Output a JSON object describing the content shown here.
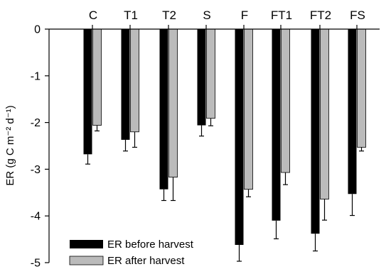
{
  "chart_data": {
    "type": "bar",
    "ylabel": "ER (g C m⁻² d⁻¹)",
    "ylim": [
      -5,
      0
    ],
    "yticks": [
      0,
      -1,
      -2,
      -3,
      -4,
      -5
    ],
    "categories": [
      "C",
      "T1",
      "T2",
      "S",
      "F",
      "FT1",
      "FT2",
      "FS"
    ],
    "category_axis_position": "top",
    "series": [
      {
        "name": "ER before harvest",
        "color": "#000000",
        "values": [
          -2.68,
          -2.37,
          -3.43,
          -2.06,
          -4.62,
          -4.1,
          -4.38,
          -3.53
        ],
        "errors": [
          0.21,
          0.24,
          0.24,
          0.23,
          0.35,
          0.39,
          0.37,
          0.46
        ]
      },
      {
        "name": "ER after harvest",
        "color": "#bbbbbb",
        "values": [
          -2.06,
          -2.2,
          -3.17,
          -1.91,
          -3.43,
          -3.07,
          -3.64,
          -2.53
        ],
        "errors": [
          0.12,
          0.33,
          0.5,
          0.16,
          0.16,
          0.26,
          0.45,
          0.08
        ]
      }
    ],
    "legend_position": "bottom-left",
    "grid": false
  }
}
